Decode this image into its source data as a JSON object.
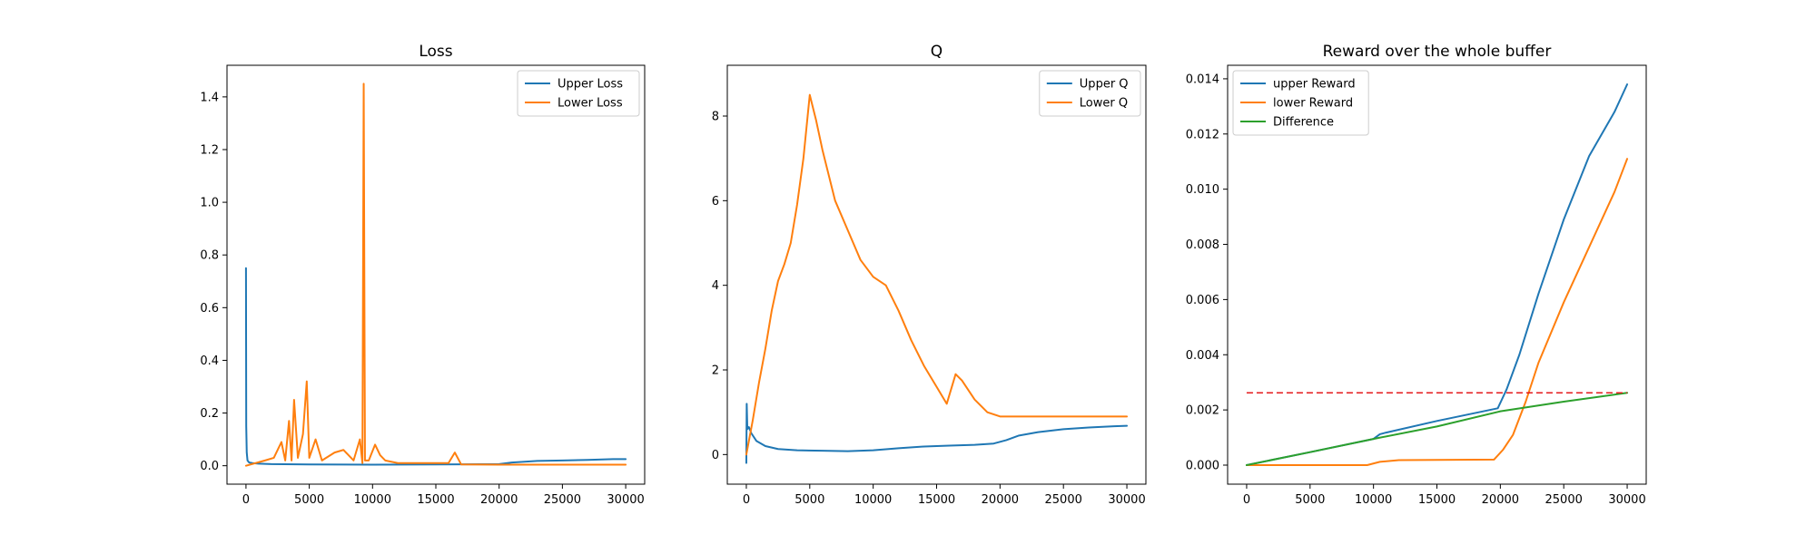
{
  "chart_data": [
    {
      "type": "line",
      "title": "Loss",
      "xlim": [
        -1500,
        31500
      ],
      "ylim": [
        -0.07,
        1.52
      ],
      "xticks": [
        0,
        5000,
        10000,
        15000,
        20000,
        25000,
        30000
      ],
      "yticks": [
        0.0,
        0.2,
        0.4,
        0.6,
        0.8,
        1.0,
        1.2,
        1.4
      ],
      "ytick_decimals": 1,
      "legend": "top-right",
      "series": [
        {
          "name": "Upper Loss",
          "color": "#1f77b4",
          "x": [
            0,
            20,
            60,
            120,
            250,
            500,
            1000,
            2000,
            5000,
            10000,
            15000,
            20000,
            21000,
            23000,
            25000,
            27000,
            29000,
            30000
          ],
          "y": [
            0.75,
            0.15,
            0.05,
            0.02,
            0.012,
            0.01,
            0.008,
            0.006,
            0.005,
            0.004,
            0.005,
            0.006,
            0.012,
            0.018,
            0.02,
            0.022,
            0.025,
            0.025
          ]
        },
        {
          "name": "Lower Loss",
          "color": "#ff7f0e",
          "x": [
            0,
            1500,
            2200,
            2800,
            3100,
            3400,
            3600,
            3800,
            4100,
            4500,
            4800,
            5000,
            5500,
            6000,
            7000,
            7700,
            8500,
            9000,
            9200,
            9300,
            9400,
            9700,
            10200,
            10600,
            11000,
            12000,
            14000,
            16000,
            16500,
            17000,
            20000,
            25000,
            30000
          ],
          "y": [
            0.0,
            0.02,
            0.03,
            0.09,
            0.02,
            0.17,
            0.02,
            0.25,
            0.03,
            0.12,
            0.32,
            0.03,
            0.1,
            0.02,
            0.05,
            0.06,
            0.02,
            0.1,
            0.01,
            1.45,
            0.02,
            0.02,
            0.08,
            0.04,
            0.02,
            0.01,
            0.01,
            0.01,
            0.05,
            0.005,
            0.004,
            0.004,
            0.004
          ]
        }
      ]
    },
    {
      "type": "line",
      "title": "Q",
      "xlim": [
        -1500,
        31500
      ],
      "ylim": [
        -0.7,
        9.2
      ],
      "xticks": [
        0,
        5000,
        10000,
        15000,
        20000,
        25000,
        30000
      ],
      "yticks": [
        0,
        2,
        4,
        6,
        8
      ],
      "ytick_decimals": 0,
      "legend": "top-right",
      "series": [
        {
          "name": "Upper Q",
          "color": "#1f77b4",
          "x": [
            0,
            30,
            80,
            200,
            400,
            800,
            1500,
            2500,
            4000,
            6000,
            8000,
            10000,
            12000,
            14000,
            16000,
            18000,
            19500,
            20500,
            21500,
            23000,
            25000,
            27000,
            29000,
            30000
          ],
          "y": [
            -0.2,
            1.2,
            0.6,
            0.65,
            0.5,
            0.32,
            0.2,
            0.13,
            0.1,
            0.09,
            0.08,
            0.1,
            0.15,
            0.19,
            0.21,
            0.23,
            0.26,
            0.34,
            0.45,
            0.53,
            0.6,
            0.64,
            0.67,
            0.68
          ]
        },
        {
          "name": "Lower Q",
          "color": "#ff7f0e",
          "x": [
            0,
            500,
            1000,
            1500,
            2000,
            2500,
            3000,
            3500,
            4000,
            4500,
            5000,
            5500,
            6000,
            7000,
            8000,
            9000,
            10000,
            11000,
            12000,
            13000,
            14000,
            15000,
            15800,
            16500,
            17000,
            18000,
            19000,
            20000,
            25000,
            30000
          ],
          "y": [
            0.0,
            0.8,
            1.7,
            2.5,
            3.4,
            4.1,
            4.5,
            5.0,
            5.9,
            7.0,
            8.5,
            7.9,
            7.2,
            6.0,
            5.3,
            4.6,
            4.2,
            4.0,
            3.4,
            2.7,
            2.1,
            1.6,
            1.2,
            1.9,
            1.75,
            1.3,
            1.0,
            0.9,
            0.9,
            0.9
          ]
        }
      ]
    },
    {
      "type": "line",
      "title": "Reward over the whole buffer",
      "xlim": [
        -1500,
        31500
      ],
      "ylim": [
        -0.00069,
        0.01449
      ],
      "xticks": [
        0,
        5000,
        10000,
        15000,
        20000,
        25000,
        30000
      ],
      "yticks": [
        0.0,
        0.002,
        0.004,
        0.006,
        0.008,
        0.01,
        0.012,
        0.014
      ],
      "ytick_decimals": 3,
      "legend": "top-left",
      "hline": {
        "y": 0.00262,
        "xmin": 0,
        "xmax": 30000,
        "color": "#e41a1c",
        "style": "dashed"
      },
      "series": [
        {
          "name": "upper Reward",
          "color": "#1f77b4",
          "x": [
            0,
            5000,
            10000,
            10500,
            11000,
            15000,
            19800,
            20500,
            21500,
            23000,
            25000,
            27000,
            29000,
            30000
          ],
          "y": [
            0.0,
            0.00047,
            0.00095,
            0.00112,
            0.00118,
            0.0016,
            0.00206,
            0.00275,
            0.004,
            0.0062,
            0.0089,
            0.0112,
            0.0128,
            0.0138
          ]
        },
        {
          "name": "lower Reward",
          "color": "#ff7f0e",
          "x": [
            0,
            9500,
            10500,
            12000,
            19500,
            20200,
            21000,
            22000,
            23000,
            25000,
            27000,
            29000,
            30000
          ],
          "y": [
            0.0,
            0.0,
            0.00012,
            0.00018,
            0.0002,
            0.00055,
            0.0011,
            0.0023,
            0.0037,
            0.0059,
            0.0079,
            0.0099,
            0.0111
          ]
        },
        {
          "name": "Difference",
          "color": "#2ca02c",
          "x": [
            0,
            5000,
            10000,
            15000,
            20000,
            25000,
            30000
          ],
          "y": [
            0.0,
            0.00047,
            0.00095,
            0.0014,
            0.00195,
            0.0023,
            0.00262
          ]
        }
      ]
    }
  ]
}
